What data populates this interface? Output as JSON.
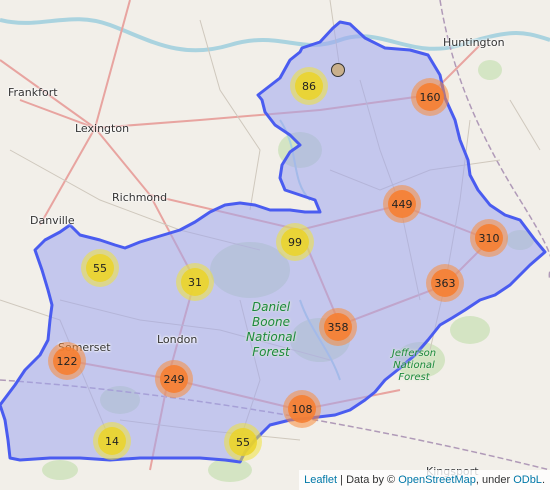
{
  "map": {
    "places": [
      {
        "name": "Huntington"
      },
      {
        "name": "Frankfort"
      },
      {
        "name": "Lexington"
      },
      {
        "name": "Richmond"
      },
      {
        "name": "Danville"
      },
      {
        "name": "Somerset"
      },
      {
        "name": "London"
      },
      {
        "name": "Kingsport"
      }
    ],
    "forests": [
      {
        "lines": [
          "Daniel",
          "Boone",
          "National",
          "Forest"
        ]
      },
      {
        "lines": [
          "Jefferson",
          "National",
          "Forest"
        ]
      }
    ],
    "clusters": [
      {
        "count": "86",
        "size": "small"
      },
      {
        "count": "160",
        "size": "large"
      },
      {
        "count": "449",
        "size": "large"
      },
      {
        "count": "310",
        "size": "large"
      },
      {
        "count": "99",
        "size": "small"
      },
      {
        "count": "55",
        "size": "small"
      },
      {
        "count": "31",
        "size": "small"
      },
      {
        "count": "363",
        "size": "large"
      },
      {
        "count": "358",
        "size": "large"
      },
      {
        "count": "122",
        "size": "large"
      },
      {
        "count": "249",
        "size": "large"
      },
      {
        "count": "108",
        "size": "large"
      },
      {
        "count": "14",
        "size": "small"
      },
      {
        "count": "55",
        "size": "small"
      }
    ],
    "region_color": "#4a5cf0",
    "region_fill": "#9fa6f0"
  },
  "attribution": {
    "leaflet": "Leaflet",
    "sep1": " | Data by © ",
    "osm": "OpenStreetMap",
    "sep2": ", under ",
    "odbl": "ODbL",
    "end": "."
  }
}
